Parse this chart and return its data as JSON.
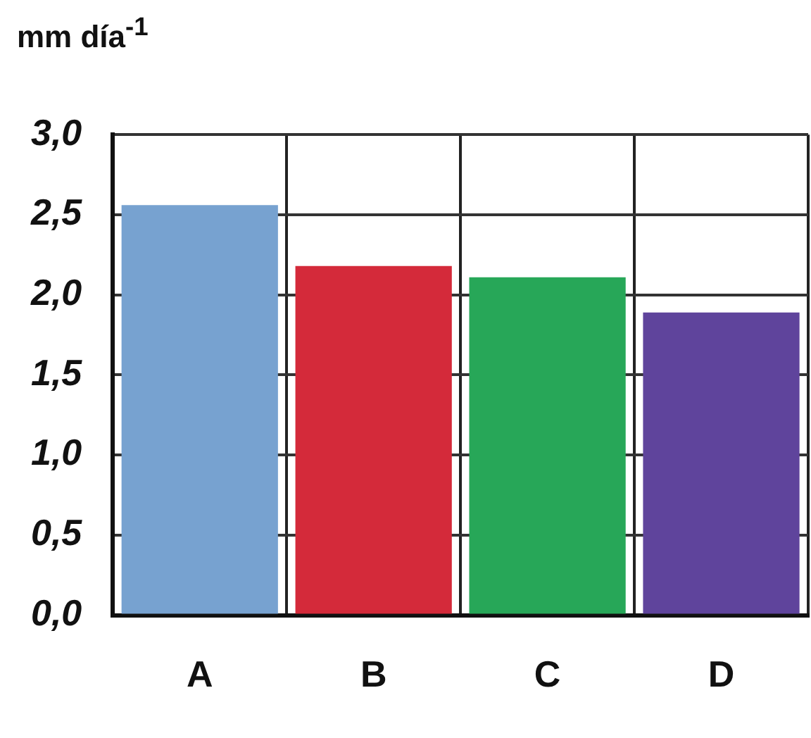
{
  "chart_data": {
    "type": "bar",
    "ylabel": "mm día$^{-1}$",
    "categories": [
      "A",
      "B",
      "C",
      "D"
    ],
    "values": [
      2.56,
      2.18,
      2.11,
      1.89
    ],
    "colors": [
      "#77a2d0",
      "#d42a3a",
      "#27a758",
      "#5f449c"
    ],
    "ylim": [
      0,
      3
    ],
    "yticks": [
      {
        "value": 0,
        "label": "0,0"
      },
      {
        "value": 0.5,
        "label": "0,5"
      },
      {
        "value": 1,
        "label": "1,0"
      },
      {
        "value": 1.5,
        "label": "1,5"
      },
      {
        "value": 2,
        "label": "2,0"
      },
      {
        "value": 2.5,
        "label": "2,5"
      },
      {
        "value": 3,
        "label": "3,0"
      }
    ],
    "grid": true
  }
}
